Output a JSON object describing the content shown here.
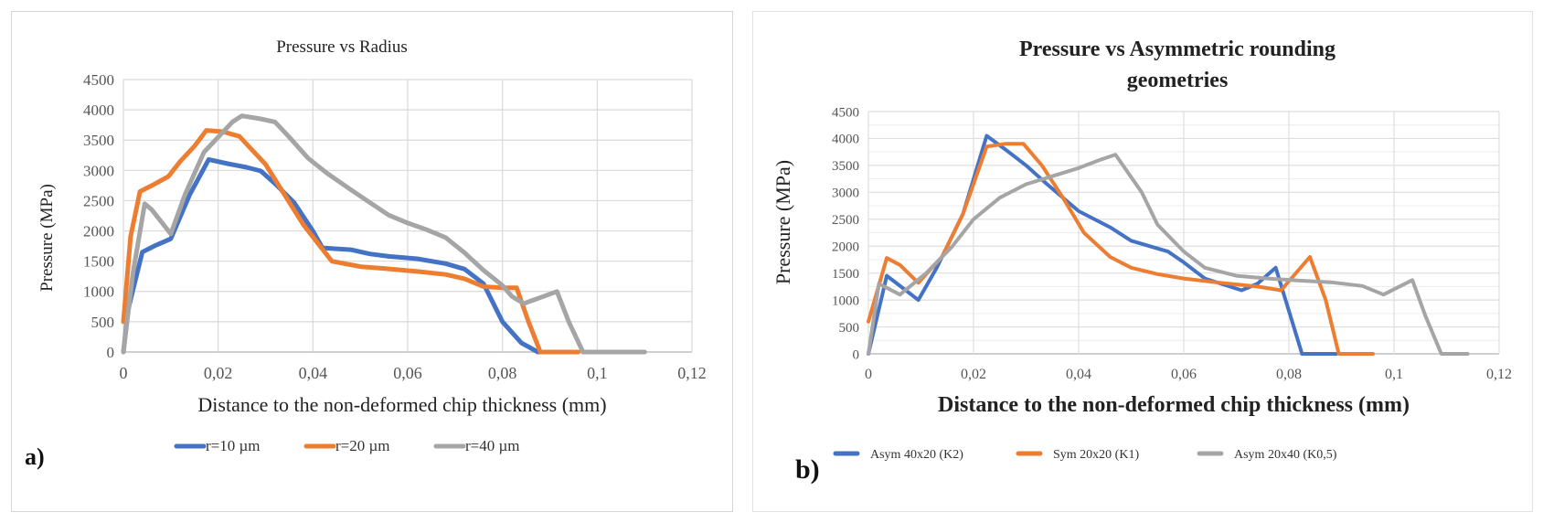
{
  "chart_data": [
    {
      "type": "line",
      "panel_label": "a)",
      "title": "Pressure vs Radius",
      "xlabel": "Distance to the non-deformed chip thickness (mm)",
      "ylabel": "Pressure (MPa)",
      "xlim": [
        0,
        0.12
      ],
      "ylim": [
        0,
        4500
      ],
      "x_ticks": [
        0,
        0.02,
        0.04,
        0.06,
        0.08,
        0.1,
        0.12
      ],
      "x_tick_labels": [
        "0",
        "0,02",
        "0,04",
        "0,06",
        "0,08",
        "0,1",
        "0,12"
      ],
      "y_ticks": [
        0,
        500,
        1000,
        1500,
        2000,
        2500,
        3000,
        3500,
        4000,
        4500
      ],
      "y_tick_labels": [
        "0",
        "500",
        "1000",
        "1500",
        "2000",
        "2500",
        "3000",
        "3500",
        "4000",
        "4500"
      ],
      "grid": true,
      "legend_position": "bottom",
      "series": [
        {
          "name": "r=10 µm",
          "color": "#4472C4",
          "points": [
            [
              0,
              0
            ],
            [
              0.001,
              700
            ],
            [
              0.004,
              1650
            ],
            [
              0.0065,
              1750
            ],
            [
              0.01,
              1870
            ],
            [
              0.014,
              2600
            ],
            [
              0.018,
              3180
            ],
            [
              0.022,
              3110
            ],
            [
              0.026,
              3050
            ],
            [
              0.029,
              2990
            ],
            [
              0.032,
              2780
            ],
            [
              0.036,
              2470
            ],
            [
              0.04,
              2000
            ],
            [
              0.042,
              1720
            ],
            [
              0.048,
              1690
            ],
            [
              0.052,
              1620
            ],
            [
              0.056,
              1580
            ],
            [
              0.062,
              1540
            ],
            [
              0.068,
              1460
            ],
            [
              0.072,
              1370
            ],
            [
              0.076,
              1130
            ],
            [
              0.08,
              500
            ],
            [
              0.084,
              150
            ],
            [
              0.0875,
              0
            ],
            [
              0.095,
              0
            ]
          ]
        },
        {
          "name": "r=20 µm",
          "color": "#ED7D31",
          "points": [
            [
              0,
              500
            ],
            [
              0.0015,
              1900
            ],
            [
              0.0035,
              2650
            ],
            [
              0.006,
              2750
            ],
            [
              0.0095,
              2900
            ],
            [
              0.012,
              3150
            ],
            [
              0.015,
              3400
            ],
            [
              0.0175,
              3660
            ],
            [
              0.021,
              3640
            ],
            [
              0.0245,
              3560
            ],
            [
              0.027,
              3350
            ],
            [
              0.03,
              3100
            ],
            [
              0.034,
              2600
            ],
            [
              0.038,
              2100
            ],
            [
              0.042,
              1700
            ],
            [
              0.044,
              1500
            ],
            [
              0.05,
              1410
            ],
            [
              0.055,
              1380
            ],
            [
              0.062,
              1330
            ],
            [
              0.068,
              1280
            ],
            [
              0.072,
              1210
            ],
            [
              0.076,
              1080
            ],
            [
              0.08,
              1060
            ],
            [
              0.083,
              1060
            ],
            [
              0.0855,
              500
            ],
            [
              0.088,
              0
            ],
            [
              0.096,
              0
            ]
          ]
        },
        {
          "name": "r=40 µm",
          "color": "#A5A5A5",
          "points": [
            [
              0,
              0
            ],
            [
              0.002,
              1300
            ],
            [
              0.0045,
              2450
            ],
            [
              0.006,
              2350
            ],
            [
              0.0085,
              2100
            ],
            [
              0.01,
              1950
            ],
            [
              0.013,
              2600
            ],
            [
              0.017,
              3300
            ],
            [
              0.02,
              3550
            ],
            [
              0.023,
              3800
            ],
            [
              0.025,
              3900
            ],
            [
              0.029,
              3850
            ],
            [
              0.032,
              3800
            ],
            [
              0.035,
              3550
            ],
            [
              0.039,
              3200
            ],
            [
              0.043,
              2950
            ],
            [
              0.048,
              2680
            ],
            [
              0.052,
              2470
            ],
            [
              0.056,
              2260
            ],
            [
              0.06,
              2130
            ],
            [
              0.064,
              2020
            ],
            [
              0.068,
              1890
            ],
            [
              0.072,
              1640
            ],
            [
              0.076,
              1350
            ],
            [
              0.08,
              1100
            ],
            [
              0.082,
              920
            ],
            [
              0.0845,
              800
            ],
            [
              0.0915,
              1000
            ],
            [
              0.094,
              500
            ],
            [
              0.097,
              0
            ],
            [
              0.11,
              0
            ]
          ]
        }
      ]
    },
    {
      "type": "line",
      "panel_label": "b)",
      "title": "Pressure vs Asymmetric rounding geometries",
      "title_lines": [
        "Pressure vs Asymmetric rounding",
        "geometries"
      ],
      "xlabel": "Distance to the non-deformed chip thickness (mm)",
      "ylabel": "Pressure (MPa)",
      "xlim": [
        0,
        0.12
      ],
      "ylim": [
        0,
        4500
      ],
      "x_ticks": [
        0,
        0.02,
        0.04,
        0.06,
        0.08,
        0.1,
        0.12
      ],
      "x_tick_labels": [
        "0",
        "0,02",
        "0,04",
        "0,06",
        "0,08",
        "0,1",
        "0,12"
      ],
      "y_ticks": [
        0,
        500,
        1000,
        1500,
        2000,
        2500,
        3000,
        3500,
        4000,
        4500
      ],
      "y_tick_labels": [
        "0",
        "500",
        "1000",
        "1500",
        "2000",
        "2500",
        "3000",
        "3500",
        "4000",
        "4500"
      ],
      "grid": true,
      "legend_position": "bottom",
      "series": [
        {
          "name": "Asym 40x20 (K2)",
          "color": "#4472C4",
          "points": [
            [
              0,
              0
            ],
            [
              0.0035,
              1450
            ],
            [
              0.0055,
              1300
            ],
            [
              0.0095,
              1000
            ],
            [
              0.013,
              1600
            ],
            [
              0.018,
              2600
            ],
            [
              0.0225,
              4050
            ],
            [
              0.026,
              3800
            ],
            [
              0.03,
              3500
            ],
            [
              0.034,
              3150
            ],
            [
              0.04,
              2650
            ],
            [
              0.046,
              2350
            ],
            [
              0.05,
              2100
            ],
            [
              0.057,
              1900
            ],
            [
              0.06,
              1700
            ],
            [
              0.064,
              1400
            ],
            [
              0.071,
              1180
            ],
            [
              0.074,
              1300
            ],
            [
              0.0775,
              1600
            ],
            [
              0.08,
              800
            ],
            [
              0.0825,
              0
            ],
            [
              0.089,
              0
            ]
          ]
        },
        {
          "name": "Sym 20x20 (K1)",
          "color": "#ED7D31",
          "points": [
            [
              0,
              600
            ],
            [
              0.0035,
              1780
            ],
            [
              0.006,
              1650
            ],
            [
              0.0095,
              1320
            ],
            [
              0.014,
              1800
            ],
            [
              0.018,
              2600
            ],
            [
              0.0225,
              3850
            ],
            [
              0.026,
              3900
            ],
            [
              0.0295,
              3900
            ],
            [
              0.033,
              3500
            ],
            [
              0.037,
              2900
            ],
            [
              0.041,
              2250
            ],
            [
              0.046,
              1800
            ],
            [
              0.05,
              1600
            ],
            [
              0.055,
              1480
            ],
            [
              0.06,
              1400
            ],
            [
              0.067,
              1320
            ],
            [
              0.074,
              1250
            ],
            [
              0.0785,
              1180
            ],
            [
              0.084,
              1800
            ],
            [
              0.087,
              1000
            ],
            [
              0.0895,
              0
            ],
            [
              0.096,
              0
            ]
          ]
        },
        {
          "name": "Asym 20x40 (K0,5)",
          "color": "#A5A5A5",
          "points": [
            [
              0,
              0
            ],
            [
              0.002,
              1300
            ],
            [
              0.006,
              1100
            ],
            [
              0.011,
              1500
            ],
            [
              0.016,
              2000
            ],
            [
              0.02,
              2500
            ],
            [
              0.025,
              2900
            ],
            [
              0.03,
              3150
            ],
            [
              0.035,
              3300
            ],
            [
              0.04,
              3450
            ],
            [
              0.044,
              3600
            ],
            [
              0.047,
              3700
            ],
            [
              0.052,
              3000
            ],
            [
              0.055,
              2400
            ],
            [
              0.06,
              1900
            ],
            [
              0.064,
              1600
            ],
            [
              0.07,
              1450
            ],
            [
              0.076,
              1400
            ],
            [
              0.082,
              1360
            ],
            [
              0.088,
              1330
            ],
            [
              0.094,
              1260
            ],
            [
              0.098,
              1100
            ],
            [
              0.1035,
              1370
            ],
            [
              0.106,
              700
            ],
            [
              0.109,
              0
            ],
            [
              0.114,
              0
            ]
          ]
        }
      ]
    }
  ]
}
